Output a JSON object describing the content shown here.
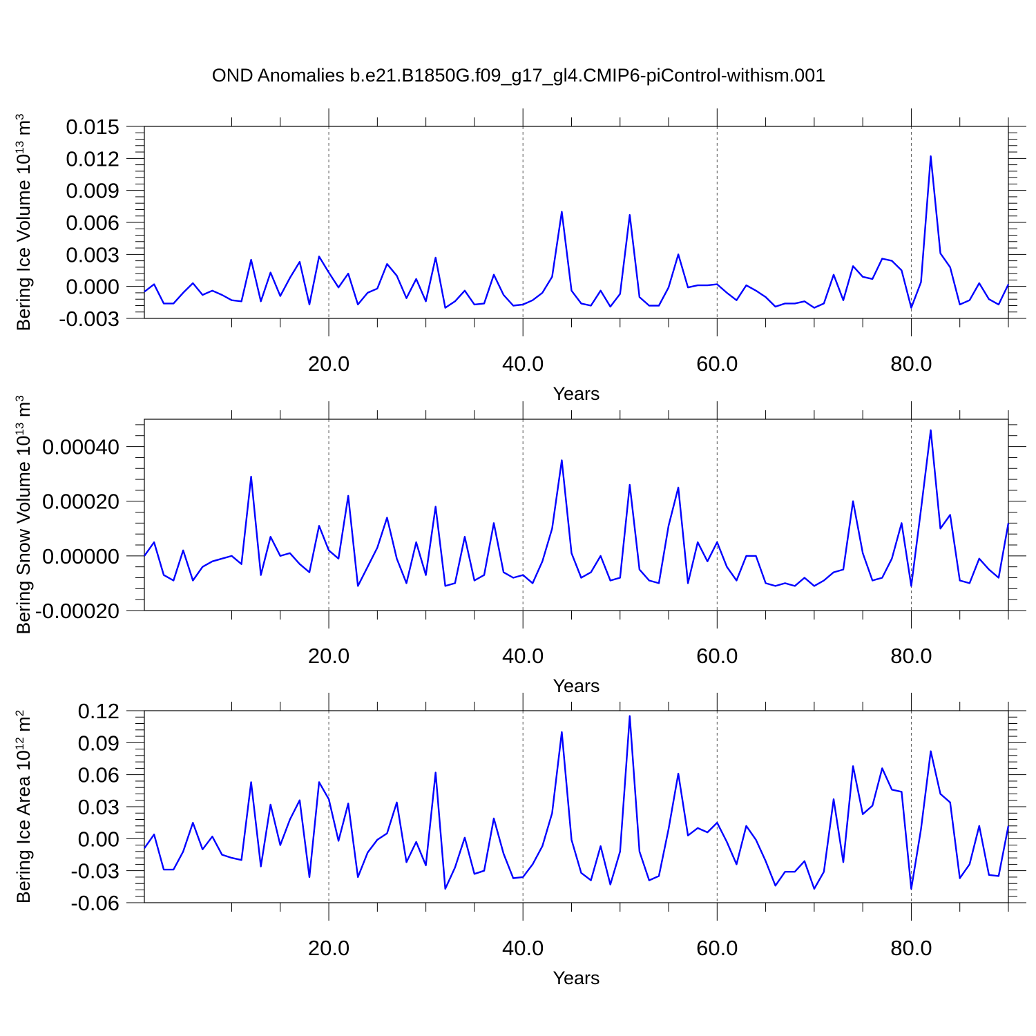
{
  "title": "OND Anomalies b.e21.B1850G.f09_g17_gl4.CMIP6-piControl-withism.001",
  "colors": {
    "line": "#0000ff",
    "axes": "#000000"
  },
  "chart_data": [
    {
      "type": "line",
      "ylabel_text": "Bering Ice Volume 10",
      "ylabel_exp": "13",
      "ylabel_unit": " m",
      "ylabel_unit_exp": "3",
      "xlabel": "Years",
      "xlim": [
        1,
        90
      ],
      "ylim": [
        -0.003,
        0.015
      ],
      "yticks": [
        -0.003,
        0.0,
        0.003,
        0.006,
        0.009,
        0.012,
        0.015
      ],
      "ytick_labels": [
        "-0.003",
        "0.000",
        "0.003",
        "0.006",
        "0.009",
        "0.012",
        "0.015"
      ],
      "xticks": [
        20,
        40,
        60,
        80
      ],
      "xtick_labels": [
        "20.0",
        "40.0",
        "60.0",
        "80.0"
      ],
      "grid_x": true,
      "x": [
        1,
        2,
        3,
        4,
        5,
        6,
        7,
        8,
        9,
        10,
        11,
        12,
        13,
        14,
        15,
        16,
        17,
        18,
        19,
        20,
        21,
        22,
        23,
        24,
        25,
        26,
        27,
        28,
        29,
        30,
        31,
        32,
        33,
        34,
        35,
        36,
        37,
        38,
        39,
        40,
        41,
        42,
        43,
        44,
        45,
        46,
        47,
        48,
        49,
        50,
        51,
        52,
        53,
        54,
        55,
        56,
        57,
        58,
        59,
        60,
        61,
        62,
        63,
        64,
        65,
        66,
        67,
        68,
        69,
        70,
        71,
        72,
        73,
        74,
        75,
        76,
        77,
        78,
        79,
        80,
        81,
        82,
        83,
        84,
        85,
        86,
        87,
        88,
        89,
        90
      ],
      "series": [
        {
          "values": [
            -0.0005,
            0.0002,
            -0.0016,
            -0.0016,
            -0.0006,
            0.0003,
            -0.0008,
            -0.0004,
            -0.0008,
            -0.0013,
            -0.0014,
            0.0025,
            -0.0014,
            0.0013,
            -0.0009,
            0.0008,
            0.0023,
            -0.0017,
            0.0028,
            0.0013,
            -0.0001,
            0.0012,
            -0.0017,
            -0.0006,
            -0.0002,
            0.0021,
            0.001,
            -0.0011,
            0.0007,
            -0.0014,
            0.0027,
            -0.002,
            -0.0014,
            -0.0004,
            -0.0017,
            -0.0016,
            0.0011,
            -0.0008,
            -0.0018,
            -0.0017,
            -0.0013,
            -0.0006,
            0.0009,
            0.007,
            -0.0004,
            -0.0016,
            -0.0018,
            -0.0004,
            -0.0019,
            -0.0007,
            0.0067,
            -0.001,
            -0.0018,
            -0.0018,
            -0.0001,
            0.003,
            -0.0001,
            0.0001,
            0.0001,
            0.0002,
            -0.0006,
            -0.0013,
            0.0001,
            -0.0004,
            -0.001,
            -0.0019,
            -0.0016,
            -0.0016,
            -0.0014,
            -0.002,
            -0.0016,
            0.0011,
            -0.0013,
            0.0019,
            0.0009,
            0.0007,
            0.0026,
            0.0024,
            0.0015,
            -0.002,
            0.0004,
            0.0122,
            0.0031,
            0.0018,
            -0.0017,
            -0.0013,
            0.0003,
            -0.0012,
            -0.0017,
            0.0002
          ]
        }
      ]
    },
    {
      "type": "line",
      "ylabel_text": "Bering Snow Volume 10",
      "ylabel_exp": "13",
      "ylabel_unit": " m",
      "ylabel_unit_exp": "3",
      "xlabel": "Years",
      "xlim": [
        1,
        90
      ],
      "ylim": [
        -0.0002,
        0.0005
      ],
      "yticks": [
        -0.0002,
        0.0,
        0.0002,
        0.0004
      ],
      "ytick_labels": [
        "-0.00020",
        "0.00000",
        "0.00020",
        "0.00040"
      ],
      "xticks": [
        20,
        40,
        60,
        80
      ],
      "xtick_labels": [
        "20.0",
        "40.0",
        "60.0",
        "80.0"
      ],
      "grid_x": true,
      "x": [
        1,
        2,
        3,
        4,
        5,
        6,
        7,
        8,
        9,
        10,
        11,
        12,
        13,
        14,
        15,
        16,
        17,
        18,
        19,
        20,
        21,
        22,
        23,
        24,
        25,
        26,
        27,
        28,
        29,
        30,
        31,
        32,
        33,
        34,
        35,
        36,
        37,
        38,
        39,
        40,
        41,
        42,
        43,
        44,
        45,
        46,
        47,
        48,
        49,
        50,
        51,
        52,
        53,
        54,
        55,
        56,
        57,
        58,
        59,
        60,
        61,
        62,
        63,
        64,
        65,
        66,
        67,
        68,
        69,
        70,
        71,
        72,
        73,
        74,
        75,
        76,
        77,
        78,
        79,
        80,
        81,
        82,
        83,
        84,
        85,
        86,
        87,
        88,
        89,
        90
      ],
      "series": [
        {
          "values": [
            0.0,
            5e-05,
            -7e-05,
            -9e-05,
            2e-05,
            -9e-05,
            -4e-05,
            -2e-05,
            -1e-05,
            0.0,
            -3e-05,
            0.00029,
            -7e-05,
            7e-05,
            0.0,
            1e-05,
            -3e-05,
            -6e-05,
            0.00011,
            2e-05,
            -1e-05,
            0.00022,
            -0.00011,
            -4e-05,
            3e-05,
            0.00014,
            -1e-05,
            -0.0001,
            5e-05,
            -7e-05,
            0.00018,
            -0.00011,
            -0.0001,
            7e-05,
            -9e-05,
            -7e-05,
            0.00012,
            -6e-05,
            -8e-05,
            -7e-05,
            -0.0001,
            -2e-05,
            0.0001,
            0.00035,
            1e-05,
            -8e-05,
            -6e-05,
            0.0,
            -9e-05,
            -8e-05,
            0.00026,
            -5e-05,
            -9e-05,
            -0.0001,
            0.00011,
            0.00025,
            -0.0001,
            5e-05,
            -2e-05,
            5e-05,
            -4e-05,
            -9e-05,
            0.0,
            0.0,
            -0.0001,
            -0.00011,
            -0.0001,
            -0.00011,
            -8e-05,
            -0.00011,
            -9e-05,
            -6e-05,
            -5e-05,
            0.0002,
            1e-05,
            -9e-05,
            -8e-05,
            -1e-05,
            0.00012,
            -0.00011,
            0.00017,
            0.00046,
            0.0001,
            0.00015,
            -9e-05,
            -0.0001,
            -1e-05,
            -5e-05,
            -8e-05,
            0.00012
          ]
        }
      ]
    },
    {
      "type": "line",
      "ylabel_text": "Bering Ice Area 10",
      "ylabel_exp": "12",
      "ylabel_unit": " m",
      "ylabel_unit_exp": "2",
      "xlabel": "Years",
      "xlim": [
        1,
        90
      ],
      "ylim": [
        -0.06,
        0.12
      ],
      "yticks": [
        -0.06,
        -0.03,
        0.0,
        0.03,
        0.06,
        0.09,
        0.12
      ],
      "ytick_labels": [
        "-0.06",
        "-0.03",
        "0.00",
        "0.03",
        "0.06",
        "0.09",
        "0.12"
      ],
      "xticks": [
        20,
        40,
        60,
        80
      ],
      "xtick_labels": [
        "20.0",
        "40.0",
        "60.0",
        "80.0"
      ],
      "grid_x": true,
      "x": [
        1,
        2,
        3,
        4,
        5,
        6,
        7,
        8,
        9,
        10,
        11,
        12,
        13,
        14,
        15,
        16,
        17,
        18,
        19,
        20,
        21,
        22,
        23,
        24,
        25,
        26,
        27,
        28,
        29,
        30,
        31,
        32,
        33,
        34,
        35,
        36,
        37,
        38,
        39,
        40,
        41,
        42,
        43,
        44,
        45,
        46,
        47,
        48,
        49,
        50,
        51,
        52,
        53,
        54,
        55,
        56,
        57,
        58,
        59,
        60,
        61,
        62,
        63,
        64,
        65,
        66,
        67,
        68,
        69,
        70,
        71,
        72,
        73,
        74,
        75,
        76,
        77,
        78,
        79,
        80,
        81,
        82,
        83,
        84,
        85,
        86,
        87,
        88,
        89,
        90
      ],
      "series": [
        {
          "values": [
            -0.009,
            0.004,
            -0.029,
            -0.029,
            -0.012,
            0.015,
            -0.01,
            0.002,
            -0.015,
            -0.018,
            -0.02,
            0.053,
            -0.026,
            0.032,
            -0.006,
            0.018,
            0.036,
            -0.036,
            0.053,
            0.037,
            -0.002,
            0.033,
            -0.036,
            -0.013,
            -0.001,
            0.005,
            0.034,
            -0.022,
            -0.003,
            -0.025,
            0.062,
            -0.047,
            -0.027,
            0.001,
            -0.033,
            -0.03,
            0.019,
            -0.014,
            -0.037,
            -0.036,
            -0.024,
            -0.007,
            0.024,
            0.1,
            -0.001,
            -0.032,
            -0.039,
            -0.007,
            -0.043,
            -0.012,
            0.115,
            -0.012,
            -0.039,
            -0.035,
            0.009,
            0.061,
            0.003,
            0.01,
            0.006,
            0.015,
            -0.003,
            -0.024,
            0.012,
            -0.001,
            -0.021,
            -0.044,
            -0.031,
            -0.031,
            -0.021,
            -0.047,
            -0.031,
            0.037,
            -0.022,
            0.068,
            0.023,
            0.031,
            0.066,
            0.046,
            0.044,
            -0.047,
            0.009,
            0.082,
            0.042,
            0.034,
            -0.037,
            -0.024,
            0.012,
            -0.034,
            -0.035,
            0.012
          ]
        }
      ]
    }
  ]
}
